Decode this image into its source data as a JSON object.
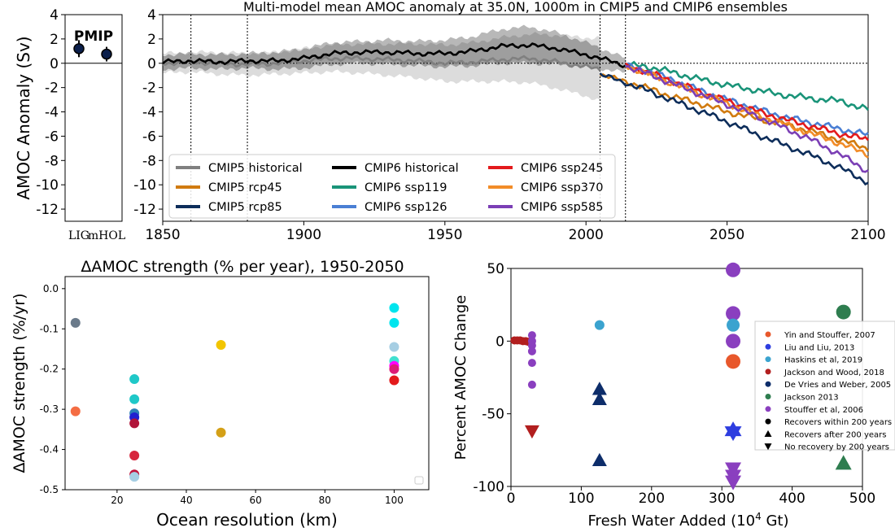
{
  "chart_data": [
    {
      "id": "pmip",
      "type": "scatter",
      "title": "",
      "label": "PMIP",
      "ylabel": "AMOC Anomaly (Sv)",
      "ylim": [
        -13,
        4
      ],
      "yticks": [
        4,
        2,
        0,
        -2,
        -4,
        -6,
        -8,
        -10,
        -12
      ],
      "categories": [
        "LIG",
        "mHOL"
      ],
      "points": [
        {
          "category": "LIG",
          "y": 1.2,
          "err": 0.7
        },
        {
          "category": "mHOL",
          "y": 0.75,
          "err": 0.6
        }
      ],
      "point_color": "#0b1f4b"
    },
    {
      "id": "timeseries",
      "type": "line",
      "title": "Multi-model mean AMOC anomaly at 35.0N, 1000m in CMIP5 and CMIP6 ensembles",
      "xlabel": "",
      "ylabel": "",
      "xlim": [
        1850,
        2100
      ],
      "ylim": [
        -13,
        4
      ],
      "xticks": [
        1850,
        1900,
        1950,
        2000,
        2050,
        2100
      ],
      "yticks": [
        4,
        2,
        0,
        -2,
        -4,
        -6,
        -8,
        -10,
        -12
      ],
      "vlines": [
        1860,
        1880,
        2005,
        2014
      ],
      "legend_position": "lower-left",
      "series": [
        {
          "name": "CMIP5 historical",
          "color": "#808080",
          "band": true,
          "x": [
            1850,
            1860,
            1870,
            1880,
            1890,
            1900,
            1910,
            1920,
            1930,
            1940,
            1950,
            1960,
            1970,
            1980,
            1990,
            2000,
            2005
          ],
          "y": [
            0.0,
            0.1,
            0.0,
            -0.1,
            0.0,
            0.2,
            0.4,
            0.4,
            0.3,
            0.2,
            0.0,
            0.1,
            0.3,
            0.4,
            0.1,
            -0.3,
            -0.5
          ],
          "spread": [
            0.8,
            0.8,
            0.9,
            0.9,
            0.9,
            1.0,
            1.1,
            1.2,
            1.3,
            1.4,
            1.5,
            1.6,
            1.8,
            2.0,
            2.2,
            2.4,
            2.6
          ]
        },
        {
          "name": "CMIP5 rcp45",
          "color": "#d17b10",
          "x": [
            2005,
            2020,
            2030,
            2040,
            2050,
            2060,
            2070,
            2080,
            2090,
            2100
          ],
          "y": [
            -0.9,
            -1.9,
            -2.7,
            -3.3,
            -4.0,
            -4.5,
            -5.0,
            -5.6,
            -6.3,
            -7.0
          ]
        },
        {
          "name": "CMIP5 rcp85",
          "color": "#0d2d5a",
          "x": [
            2005,
            2020,
            2030,
            2040,
            2050,
            2060,
            2070,
            2080,
            2090,
            2100
          ],
          "y": [
            -0.9,
            -2.1,
            -3.0,
            -3.9,
            -4.8,
            -5.8,
            -6.7,
            -7.6,
            -8.6,
            -9.8
          ]
        },
        {
          "name": "CMIP6 historical",
          "color": "#000000",
          "band": true,
          "x": [
            1850,
            1860,
            1870,
            1880,
            1890,
            1900,
            1910,
            1920,
            1930,
            1940,
            1950,
            1960,
            1970,
            1980,
            1990,
            2000,
            2010,
            2014
          ],
          "y": [
            0.1,
            0.2,
            0.1,
            0.2,
            0.2,
            0.4,
            0.8,
            0.9,
            0.9,
            0.8,
            0.8,
            1.0,
            1.4,
            1.5,
            1.2,
            0.7,
            0.1,
            -0.2
          ],
          "spread": [
            0.6,
            0.6,
            0.6,
            0.6,
            0.7,
            0.8,
            0.9,
            0.9,
            1.0,
            1.0,
            1.1,
            1.2,
            1.4,
            1.5,
            1.3,
            1.0,
            0.7,
            0.6
          ]
        },
        {
          "name": "CMIP6 ssp119",
          "color": "#1a9479",
          "x": [
            2014,
            2020,
            2030,
            2040,
            2050,
            2060,
            2070,
            2080,
            2090,
            2100
          ],
          "y": [
            -0.2,
            -0.2,
            -0.7,
            -1.3,
            -1.8,
            -2.2,
            -2.6,
            -2.9,
            -3.1,
            -3.8
          ]
        },
        {
          "name": "CMIP6 ssp126",
          "color": "#4a7fd4",
          "x": [
            2014,
            2020,
            2030,
            2040,
            2050,
            2060,
            2070,
            2080,
            2090,
            2100
          ],
          "y": [
            -0.2,
            -0.5,
            -1.3,
            -2.2,
            -3.0,
            -3.7,
            -4.4,
            -4.9,
            -5.4,
            -5.9
          ]
        },
        {
          "name": "CMIP6 ssp245",
          "color": "#e31a1c",
          "x": [
            2014,
            2020,
            2030,
            2040,
            2050,
            2060,
            2070,
            2080,
            2090,
            2100
          ],
          "y": [
            -0.2,
            -0.6,
            -1.4,
            -2.3,
            -3.1,
            -3.9,
            -4.6,
            -5.2,
            -5.8,
            -6.3
          ]
        },
        {
          "name": "CMIP6 ssp370",
          "color": "#f28c28",
          "x": [
            2014,
            2020,
            2030,
            2040,
            2050,
            2060,
            2070,
            2080,
            2090,
            2100
          ],
          "y": [
            -0.2,
            -0.7,
            -1.6,
            -2.5,
            -3.3,
            -4.2,
            -5.0,
            -5.8,
            -6.6,
            -7.5
          ]
        },
        {
          "name": "CMIP6 ssp585",
          "color": "#7b3fb5",
          "x": [
            2014,
            2020,
            2030,
            2040,
            2050,
            2060,
            2070,
            2080,
            2090,
            2100
          ],
          "y": [
            -0.2,
            -0.7,
            -1.6,
            -2.5,
            -3.4,
            -4.3,
            -5.3,
            -6.3,
            -7.5,
            -8.9
          ]
        }
      ]
    },
    {
      "id": "resolution",
      "type": "scatter",
      "title": "ΔAMOC strength (% per year), 1950-2050",
      "xlabel": "Ocean resolution (km)",
      "ylabel": "ΔAMOC strength (%/yr)",
      "xlim": [
        5,
        110
      ],
      "ylim": [
        -0.5,
        0.03
      ],
      "xticks": [
        20,
        40,
        60,
        80,
        100
      ],
      "yticks": [
        0.0,
        -0.1,
        -0.2,
        -0.3,
        -0.4,
        -0.5
      ],
      "yticklabels": [
        "0.0",
        "-0.1",
        "-0.2",
        "-0.3",
        "-0.4",
        "-0.5"
      ],
      "points": [
        {
          "x": 8,
          "y": -0.085,
          "color": "#6a7a8a"
        },
        {
          "x": 8,
          "y": -0.305,
          "color": "#f46d43"
        },
        {
          "x": 25,
          "y": -0.225,
          "color": "#1fc8c8"
        },
        {
          "x": 25,
          "y": -0.275,
          "color": "#1fc8c8"
        },
        {
          "x": 25,
          "y": -0.31,
          "color": "#2c7fb8"
        },
        {
          "x": 25,
          "y": -0.32,
          "color": "#2020d0"
        },
        {
          "x": 25,
          "y": -0.335,
          "color": "#b0153a"
        },
        {
          "x": 25,
          "y": -0.415,
          "color": "#d7263d"
        },
        {
          "x": 25,
          "y": -0.462,
          "color": "#c0143c"
        },
        {
          "x": 25,
          "y": -0.468,
          "color": "#a6cee3"
        },
        {
          "x": 50,
          "y": -0.14,
          "color": "#f2c500"
        },
        {
          "x": 50,
          "y": -0.358,
          "color": "#d4a017"
        },
        {
          "x": 100,
          "y": -0.048,
          "color": "#00e5ee"
        },
        {
          "x": 100,
          "y": -0.085,
          "color": "#00e5ee"
        },
        {
          "x": 100,
          "y": -0.145,
          "color": "#a6cee3"
        },
        {
          "x": 100,
          "y": -0.18,
          "color": "#40e0d0"
        },
        {
          "x": 100,
          "y": -0.192,
          "color": "#ff00ff"
        },
        {
          "x": 100,
          "y": -0.2,
          "color": "#dd1c77"
        },
        {
          "x": 100,
          "y": -0.228,
          "color": "#e31a1c"
        }
      ]
    },
    {
      "id": "freshwater",
      "type": "scatter",
      "title": "",
      "xlabel": "Fresh Water Added (10",
      "xlabel_sup": "4",
      "xlabel_end": " Gt)",
      "ylabel": "Percent AMOC Change",
      "xlim": [
        0,
        500
      ],
      "ylim": [
        -100,
        50
      ],
      "xticks": [
        0,
        100,
        200,
        300,
        400,
        500
      ],
      "yticks": [
        50,
        0,
        -50,
        -100
      ],
      "legend_position": "right",
      "legend": [
        {
          "label": "Yin and Stouffer, 2007",
          "color": "#e8582c",
          "marker": "circle"
        },
        {
          "label": "Liu and Liu, 2013",
          "color": "#2e3ee0",
          "marker": "circle"
        },
        {
          "label": "Haskins et al, 2019",
          "color": "#3ba3cf",
          "marker": "circle"
        },
        {
          "label": "Jackson and Wood, 2018",
          "color": "#b21f1f",
          "marker": "circle"
        },
        {
          "label": "De Vries and Weber, 2005",
          "color": "#0d2d6a",
          "marker": "circle"
        },
        {
          "label": "Jackson 2013",
          "color": "#2e7d4f",
          "marker": "circle"
        },
        {
          "label": "Stouffer et al, 2006",
          "color": "#8a3fbf",
          "marker": "circle"
        },
        {
          "label": "Recovers within 200 years",
          "color": "#000000",
          "marker": "circle"
        },
        {
          "label": "Recovers after 200 years",
          "color": "#000000",
          "marker": "triangle-up"
        },
        {
          "label": "No recovery by 200 years",
          "color": "#000000",
          "marker": "triangle-down"
        }
      ],
      "points": [
        {
          "x": 5,
          "y": 0.5,
          "color": "#b21f1f",
          "marker": "circle",
          "size": 5
        },
        {
          "x": 9,
          "y": 0.5,
          "color": "#b21f1f",
          "marker": "circle",
          "size": 5
        },
        {
          "x": 13,
          "y": 0.5,
          "color": "#b21f1f",
          "marker": "circle",
          "size": 5
        },
        {
          "x": 17,
          "y": 0,
          "color": "#b21f1f",
          "marker": "circle",
          "size": 5
        },
        {
          "x": 21,
          "y": 0,
          "color": "#b21f1f",
          "marker": "circle",
          "size": 5
        },
        {
          "x": 25,
          "y": -0.5,
          "color": "#b21f1f",
          "marker": "circle",
          "size": 5
        },
        {
          "x": 30,
          "y": 4,
          "color": "#8a3fbf",
          "marker": "circle",
          "size": 5
        },
        {
          "x": 30,
          "y": 0,
          "color": "#8a3fbf",
          "marker": "circle",
          "size": 5
        },
        {
          "x": 30,
          "y": -3,
          "color": "#8a3fbf",
          "marker": "circle",
          "size": 5
        },
        {
          "x": 30,
          "y": -7,
          "color": "#8a3fbf",
          "marker": "circle",
          "size": 5
        },
        {
          "x": 30,
          "y": -15,
          "color": "#8a3fbf",
          "marker": "circle",
          "size": 5
        },
        {
          "x": 30,
          "y": -30,
          "color": "#8a3fbf",
          "marker": "circle",
          "size": 5
        },
        {
          "x": 30,
          "y": -62,
          "color": "#b21f1f",
          "marker": "triangle-down",
          "size": 9
        },
        {
          "x": 126,
          "y": 11,
          "color": "#3ba3cf",
          "marker": "circle",
          "size": 6
        },
        {
          "x": 126,
          "y": -33,
          "color": "#0d2d6a",
          "marker": "triangle-up",
          "size": 9
        },
        {
          "x": 126,
          "y": -40,
          "color": "#0d2d6a",
          "marker": "triangle-up",
          "size": 9
        },
        {
          "x": 126,
          "y": -82,
          "color": "#0d2d6a",
          "marker": "triangle-up",
          "size": 9
        },
        {
          "x": 316,
          "y": 49,
          "color": "#8a3fbf",
          "marker": "circle",
          "size": 9
        },
        {
          "x": 316,
          "y": 19,
          "color": "#8a3fbf",
          "marker": "circle",
          "size": 9
        },
        {
          "x": 316,
          "y": 11,
          "color": "#3ba3cf",
          "marker": "circle",
          "size": 8
        },
        {
          "x": 316,
          "y": 0,
          "color": "#8a3fbf",
          "marker": "circle",
          "size": 9
        },
        {
          "x": 316,
          "y": -14,
          "color": "#e8582c",
          "marker": "circle",
          "size": 9
        },
        {
          "x": 316,
          "y": -62,
          "color": "#2e3ee0",
          "marker": "star",
          "size": 12
        },
        {
          "x": 316,
          "y": -88,
          "color": "#8a3fbf",
          "marker": "triangle-down",
          "size": 10
        },
        {
          "x": 316,
          "y": -93,
          "color": "#8a3fbf",
          "marker": "triangle-down",
          "size": 10
        },
        {
          "x": 316,
          "y": -97,
          "color": "#8a3fbf",
          "marker": "triangle-down",
          "size": 10
        },
        {
          "x": 473,
          "y": 20,
          "color": "#2e7d4f",
          "marker": "circle",
          "size": 9
        },
        {
          "x": 473,
          "y": -84,
          "color": "#2e7d4f",
          "marker": "triangle-up",
          "size": 10
        }
      ]
    }
  ]
}
